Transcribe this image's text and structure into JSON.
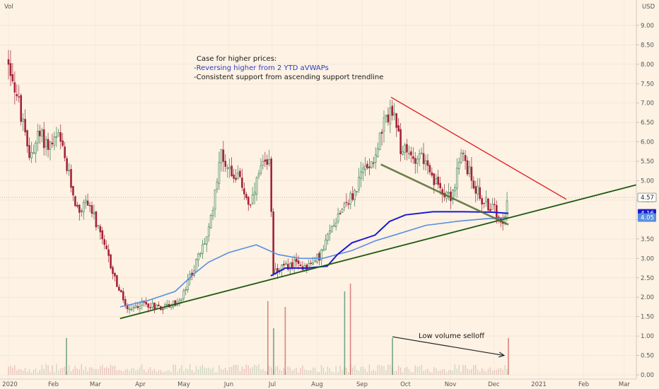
{
  "chart_data": {
    "type": "candlestick",
    "indicator_label": "Vol",
    "currency": "USD",
    "y_ticks": [
      "9.00",
      "8.50",
      "8.00",
      "7.50",
      "7.00",
      "6.50",
      "6.00",
      "5.50",
      "5.00",
      "4.50",
      "4.00",
      "3.50",
      "3.00",
      "2.50",
      "2.00",
      "1.50",
      "1.00",
      "0.50",
      "0.00"
    ],
    "ylim": [
      0,
      9.5
    ],
    "x_labels": [
      "2020",
      "Feb",
      "Mar",
      "Apr",
      "May",
      "Jun",
      "Jul",
      "Aug",
      "Sep",
      "Oct",
      "Nov",
      "Dec",
      "2021",
      "Feb",
      "Mar"
    ],
    "price_badges": [
      {
        "value": 4.57,
        "label": "4.57",
        "bg": "#ffffff",
        "fg": "#222222",
        "border": "#999999"
      },
      {
        "value": 4.16,
        "label": "4.16",
        "bg": "#1a1ad6",
        "fg": "#ffffff"
      },
      {
        "value": 4.05,
        "label": "4.05",
        "bg": "#5a8fe0",
        "fg": "#ffffff"
      }
    ],
    "annotations": {
      "title": "Case for higher prices:",
      "line1": "-Reversing higher from 2 YTD aVWAPs",
      "line2": "-Consistent support from ascending support trendline",
      "volume_note": "Low volume selloff"
    },
    "trendlines": [
      {
        "name": "ascending support",
        "color": "#1f5a12",
        "from": {
          "date": "2020-03-18",
          "price": 1.45
        },
        "to": {
          "date": "2021-03-10",
          "price": 4.9
        }
      },
      {
        "name": "descending resistance",
        "color": "#e01818",
        "from": {
          "date": "2020-09-21",
          "price": 7.15
        },
        "to": {
          "date": "2021-01-20",
          "price": 4.52
        }
      },
      {
        "name": "descending support",
        "color": "#556b2f",
        "from": {
          "date": "2020-09-14",
          "price": 5.42
        },
        "to": {
          "date": "2020-12-11",
          "price": 3.87
        }
      }
    ],
    "avwaps": [
      {
        "color": "#5a8fe0",
        "points": [
          [
            "2020-03-18",
            1.75
          ],
          [
            "2020-04-05",
            1.9
          ],
          [
            "2020-04-25",
            2.15
          ],
          [
            "2020-05-08",
            2.6
          ],
          [
            "2020-05-18",
            2.9
          ],
          [
            "2020-06-01",
            3.15
          ],
          [
            "2020-06-20",
            3.35
          ],
          [
            "2020-07-05",
            3.1
          ],
          [
            "2020-07-20",
            3.0
          ],
          [
            "2020-08-05",
            3.0
          ],
          [
            "2020-08-25",
            3.2
          ],
          [
            "2020-09-10",
            3.45
          ],
          [
            "2020-09-25",
            3.62
          ],
          [
            "2020-10-15",
            3.85
          ],
          [
            "2020-11-05",
            3.95
          ],
          [
            "2020-11-25",
            4.02
          ],
          [
            "2020-12-11",
            4.05
          ]
        ]
      },
      {
        "color": "#1a1ad6",
        "points": [
          [
            "2020-06-30",
            2.55
          ],
          [
            "2020-07-10",
            2.75
          ],
          [
            "2020-07-25",
            2.75
          ],
          [
            "2020-08-08",
            2.8
          ],
          [
            "2020-08-15",
            3.1
          ],
          [
            "2020-08-25",
            3.4
          ],
          [
            "2020-09-10",
            3.6
          ],
          [
            "2020-09-20",
            3.95
          ],
          [
            "2020-10-01",
            4.12
          ],
          [
            "2020-10-20",
            4.2
          ],
          [
            "2020-11-10",
            4.2
          ],
          [
            "2020-11-30",
            4.19
          ],
          [
            "2020-12-11",
            4.16
          ]
        ]
      }
    ],
    "price_path": [
      [
        "2020-01-01",
        8.1
      ],
      [
        "2020-01-08",
        7.0
      ],
      [
        "2020-01-15",
        5.6
      ],
      [
        "2020-01-22",
        6.2
      ],
      [
        "2020-01-29",
        5.9
      ],
      [
        "2020-02-05",
        6.1
      ],
      [
        "2020-02-11",
        5.2
      ],
      [
        "2020-02-18",
        4.2
      ],
      [
        "2020-02-25",
        4.5
      ],
      [
        "2020-03-03",
        3.7
      ],
      [
        "2020-03-10",
        3.0
      ],
      [
        "2020-03-17",
        2.2
      ],
      [
        "2020-03-24",
        1.6
      ],
      [
        "2020-04-01",
        1.85
      ],
      [
        "2020-04-08",
        1.8
      ],
      [
        "2020-04-15",
        1.75
      ],
      [
        "2020-04-22",
        1.8
      ],
      [
        "2020-04-29",
        1.9
      ],
      [
        "2020-05-05",
        2.5
      ],
      [
        "2020-05-12",
        3.1
      ],
      [
        "2020-05-19",
        3.8
      ],
      [
        "2020-05-26",
        5.7
      ],
      [
        "2020-06-02",
        5.3
      ],
      [
        "2020-06-09",
        5.0
      ],
      [
        "2020-06-16",
        4.3
      ],
      [
        "2020-06-23",
        5.3
      ],
      [
        "2020-06-30",
        5.4
      ],
      [
        "2020-07-01",
        2.7
      ],
      [
        "2020-07-08",
        2.75
      ],
      [
        "2020-07-15",
        2.85
      ],
      [
        "2020-07-22",
        2.8
      ],
      [
        "2020-07-29",
        2.85
      ],
      [
        "2020-08-05",
        3.2
      ],
      [
        "2020-08-12",
        3.9
      ],
      [
        "2020-08-19",
        4.4
      ],
      [
        "2020-08-26",
        4.6
      ],
      [
        "2020-09-02",
        5.3
      ],
      [
        "2020-09-09",
        5.6
      ],
      [
        "2020-09-16",
        6.4
      ],
      [
        "2020-09-21",
        6.9
      ],
      [
        "2020-09-28",
        5.8
      ],
      [
        "2020-10-05",
        5.6
      ],
      [
        "2020-10-12",
        5.7
      ],
      [
        "2020-10-19",
        5.0
      ],
      [
        "2020-10-26",
        4.8
      ],
      [
        "2020-11-02",
        4.6
      ],
      [
        "2020-11-09",
        5.7
      ],
      [
        "2020-11-16",
        5.0
      ],
      [
        "2020-11-23",
        4.5
      ],
      [
        "2020-11-30",
        4.3
      ],
      [
        "2020-12-07",
        4.0
      ],
      [
        "2020-12-11",
        4.57
      ]
    ],
    "volume_spikes": [
      [
        "2020-02-10",
        0.95
      ],
      [
        "2020-06-28",
        1.9
      ],
      [
        "2020-07-02",
        1.2
      ],
      [
        "2020-07-10",
        1.75
      ],
      [
        "2020-08-20",
        2.15
      ],
      [
        "2020-08-24",
        2.35
      ],
      [
        "2020-09-22",
        0.95
      ],
      [
        "2020-12-11",
        0.95
      ]
    ],
    "volume_arrow": {
      "from": {
        "date": "2020-09-22",
        "price": 0.98
      },
      "to": {
        "date": "2020-12-08",
        "price": 0.5
      }
    }
  }
}
